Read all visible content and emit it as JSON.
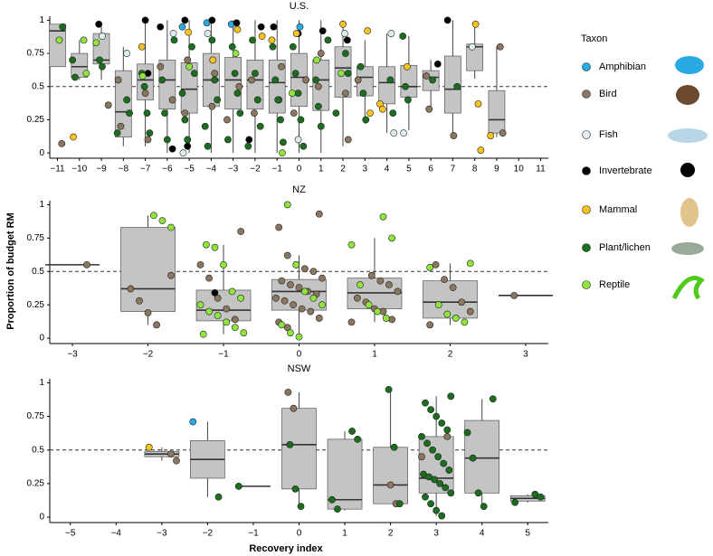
{
  "chart_data": [
    {
      "type": "box",
      "title": "U.S.",
      "legend_title": "Taxon",
      "xlim": [
        -11.35,
        11.35
      ],
      "ylim": [
        -0.04,
        1.03
      ],
      "yticks": [
        0,
        0.25,
        0.5,
        0.75,
        1
      ],
      "hline": 0.5,
      "xticks": [
        {
          "value": -11,
          "label": "−11"
        },
        {
          "value": -10,
          "label": "−10"
        },
        {
          "value": -9,
          "label": "−9"
        },
        {
          "value": -8,
          "label": "−8"
        },
        {
          "value": -7,
          "label": "−7"
        },
        {
          "value": -6,
          "label": "−6"
        },
        {
          "value": -5,
          "label": "−5"
        },
        {
          "value": -4,
          "label": "−4"
        },
        {
          "value": -3,
          "label": "−3"
        },
        {
          "value": -2,
          "label": "−2"
        },
        {
          "value": -1,
          "label": "−1"
        },
        0,
        1,
        2,
        3,
        4,
        5,
        6,
        7,
        8,
        9,
        10,
        11
      ],
      "boxes": {
        "x": [
          -11,
          -10,
          -9,
          -8,
          -7,
          -6,
          -5,
          -4,
          -3,
          -2,
          -1,
          0,
          1,
          2,
          3,
          4,
          5,
          6,
          7,
          8,
          9
        ],
        "whislo": [
          0.65,
          0.55,
          0.55,
          0.05,
          0.05,
          0,
          0,
          0,
          0,
          0,
          0,
          0,
          0,
          0.05,
          0.22,
          0.15,
          0.17,
          0.35,
          0.13,
          0.56,
          0.12
        ],
        "q1": [
          0.65,
          0.57,
          0.67,
          0.12,
          0.4,
          0.33,
          0.3,
          0.35,
          0.33,
          0.33,
          0.3,
          0.35,
          0.32,
          0.42,
          0.43,
          0.37,
          0.42,
          0.47,
          0.3,
          0.62,
          0.15
        ],
        "med": [
          0.92,
          0.65,
          0.7,
          0.31,
          0.55,
          0.55,
          0.48,
          0.55,
          0.55,
          0.55,
          0.53,
          0.57,
          0.55,
          0.64,
          0.57,
          0.53,
          0.5,
          0.57,
          0.48,
          0.8,
          0.25
        ],
        "q3": [
          0.97,
          0.75,
          0.9,
          0.62,
          0.67,
          0.7,
          0.68,
          0.75,
          0.72,
          0.7,
          0.7,
          0.75,
          0.7,
          0.8,
          0.65,
          0.65,
          0.66,
          0.62,
          0.73,
          0.82,
          0.47
        ],
        "whishi": [
          0.97,
          0.85,
          0.97,
          0.8,
          1,
          1,
          1,
          1,
          1,
          1,
          1,
          1,
          1,
          1,
          0.85,
          0.9,
          0.88,
          0.7,
          1,
          0.96,
          0.8
        ]
      },
      "series": [
        {
          "name": "Amphibian",
          "color": "#29abe2",
          "x": [
            -5,
            -4,
            -3,
            0
          ],
          "values": [
            0.95,
            0.98,
            0.97,
            0.95
          ]
        },
        {
          "name": "Bird",
          "color": "#8b7660",
          "x": [
            -11,
            -9,
            -8,
            -8,
            -7,
            -7,
            -6,
            -6,
            -5,
            -5,
            -4,
            -4,
            -3,
            -3,
            -2,
            -2,
            -1,
            -1,
            0,
            0,
            1,
            1,
            2,
            2,
            3,
            6,
            6,
            7,
            9,
            9
          ],
          "values": [
            0.07,
            0.36,
            0.55,
            0.2,
            0.45,
            0.1,
            0.4,
            0.65,
            0.3,
            0.7,
            0.35,
            0.6,
            0.5,
            0.25,
            0.55,
            0.3,
            0.4,
            0.65,
            0.55,
            0.3,
            0.5,
            0.75,
            0.45,
            0.1,
            0.55,
            0.58,
            0.33,
            0.13,
            0.8,
            0.15
          ]
        },
        {
          "name": "Fish",
          "color": "#ddeef0",
          "x": [
            -9,
            -8,
            -6,
            -5,
            -4,
            0,
            2,
            4,
            4,
            5,
            8
          ],
          "values": [
            0.88,
            0.75,
            0.9,
            0,
            0.9,
            0.1,
            0.9,
            0.9,
            0.15,
            0.15,
            0.8
          ]
        },
        {
          "name": "Invertebrate",
          "color": "#000000",
          "x": [
            -9,
            -7,
            -7,
            -6,
            -6,
            -5,
            -5,
            -4,
            -3,
            -2,
            -2,
            -1,
            0,
            1,
            2,
            6,
            7
          ],
          "values": [
            0.97,
            1,
            0.6,
            0.03,
            0.95,
            1,
            0.05,
            1,
            0.98,
            0.95,
            0.1,
            0.95,
            0.9,
            0.92,
            0.85,
            0.67,
            1
          ]
        },
        {
          "name": "Mammal",
          "color": "#f7c31c",
          "x": [
            -10,
            -7,
            -5,
            -4,
            -3,
            -2,
            -1,
            0,
            2,
            3,
            3,
            4,
            4,
            5,
            8,
            8,
            8,
            9
          ],
          "values": [
            0.12,
            0.8,
            0.91,
            0.7,
            0.93,
            0.88,
            0.85,
            0.9,
            0.97,
            0.92,
            0.3,
            0.37,
            0.33,
            0.65,
            0.97,
            0.37,
            0.02,
            0.13
          ]
        },
        {
          "name": "Plant/lichen",
          "color": "#1b6e1e",
          "x": [
            -11,
            -10,
            -10,
            -9,
            -9,
            -8,
            -8,
            -8,
            -7,
            -7,
            -7,
            -7,
            -6,
            -6,
            -6,
            -6,
            -5,
            -5,
            -5,
            -5,
            -5,
            -4,
            -4,
            -4,
            -4,
            -4,
            -3,
            -3,
            -3,
            -3,
            -3,
            -2,
            -2,
            -2,
            -2,
            -2,
            -1,
            -1,
            -1,
            -1,
            -1,
            0,
            0,
            0,
            0,
            0,
            1,
            1,
            1,
            1,
            2,
            2,
            2,
            3,
            3,
            3,
            4,
            4,
            5,
            5,
            5,
            6,
            7
          ],
          "values": [
            0.95,
            0.7,
            0.57,
            0.7,
            0.65,
            0.4,
            0.3,
            0.15,
            0.6,
            0.5,
            0.3,
            0.15,
            0.85,
            0.55,
            0.3,
            0.1,
            0.8,
            0.6,
            0.45,
            0.25,
            0.1,
            0.85,
            0.55,
            0.4,
            0.2,
            0.05,
            0.8,
            0.6,
            0.45,
            0.3,
            0.1,
            0.85,
            0.6,
            0.4,
            0.2,
            0.05,
            0.8,
            0.55,
            0.4,
            0.25,
            0.08,
            0.8,
            0.6,
            0.45,
            0.25,
            0.05,
            0.85,
            0.55,
            0.35,
            0.2,
            0.75,
            0.6,
            0.3,
            0.65,
            0.45,
            0.25,
            0.55,
            0.3,
            0.88,
            0.5,
            0.4,
            0.55,
            0.5
          ]
        },
        {
          "name": "Reptile",
          "color": "#8fe53c",
          "x": [
            -11,
            -10,
            -10,
            -9,
            -7,
            -5,
            -3,
            -1,
            0,
            1,
            2
          ],
          "values": [
            0.85,
            0.85,
            0.6,
            0.83,
            0.58,
            0.65,
            0.75,
            0,
            0.45,
            0.7,
            0.6
          ]
        }
      ]
    },
    {
      "type": "box",
      "title": "NZ",
      "ylabel": "Proportion of budget RM",
      "xlim": [
        -3.3,
        3.3
      ],
      "ylim": [
        -0.04,
        1.03
      ],
      "yticks": [
        0,
        0.25,
        0.5,
        0.75,
        1
      ],
      "hline": 0.5,
      "xticks": [
        {
          "value": -3,
          "label": "−3"
        },
        {
          "value": -2,
          "label": "−2"
        },
        {
          "value": -1,
          "label": "−1"
        },
        0,
        1,
        2,
        3
      ],
      "boxes": {
        "x": [
          -3,
          -2,
          -1,
          0,
          1,
          2,
          3
        ],
        "whislo": [
          0.55,
          0.1,
          0.03,
          0.01,
          0.12,
          0.1,
          0.32
        ],
        "q1": [
          0.55,
          0.2,
          0.13,
          0.21,
          0.22,
          0.15,
          0.32
        ],
        "med": [
          0.55,
          0.37,
          0.21,
          0.35,
          0.34,
          0.27,
          0.32
        ],
        "q3": [
          0.55,
          0.83,
          0.36,
          0.44,
          0.45,
          0.43,
          0.32
        ],
        "whishi": [
          0.55,
          0.92,
          0.7,
          0.62,
          0.75,
          0.56,
          0.32
        ]
      },
      "series": [
        {
          "name": "Amphibian",
          "color": "#29abe2",
          "x": [],
          "values": []
        },
        {
          "name": "Bird",
          "color": "#8b7660",
          "x": [
            -3,
            -2,
            -2,
            -2,
            -2,
            -2,
            -1,
            -1,
            -1,
            -1,
            -1,
            -1,
            0,
            0,
            0,
            0,
            0,
            0,
            0,
            0,
            0,
            0,
            0,
            0,
            0,
            0,
            0,
            0,
            0,
            0,
            0,
            0,
            1,
            1,
            1,
            1,
            1,
            1,
            1,
            1,
            1,
            1,
            2,
            2,
            2,
            2,
            2,
            2,
            3
          ],
          "values": [
            0.55,
            0.47,
            0.37,
            0.28,
            0.19,
            0.1,
            0.8,
            0.55,
            0.45,
            0.3,
            0.22,
            0.14,
            0.93,
            0.83,
            0.62,
            0.55,
            0.52,
            0.5,
            0.45,
            0.43,
            0.4,
            0.38,
            0.35,
            0.33,
            0.3,
            0.28,
            0.25,
            0.22,
            0.2,
            0.15,
            0.12,
            0.08,
            0.47,
            0.43,
            0.4,
            0.35,
            0.3,
            0.27,
            0.22,
            0.2,
            0.14,
            0.12,
            0.55,
            0.44,
            0.38,
            0.27,
            0.2,
            0.1,
            0.32
          ]
        },
        {
          "name": "Fish",
          "color": "#ddeef0",
          "x": [],
          "values": []
        },
        {
          "name": "Invertebrate",
          "color": "#000000",
          "x": [
            -1
          ],
          "values": [
            0.34
          ]
        },
        {
          "name": "Mammal",
          "color": "#f7c31c",
          "x": [],
          "values": []
        },
        {
          "name": "Plant/lichen",
          "color": "#1b6e1e",
          "x": [],
          "values": []
        },
        {
          "name": "Reptile",
          "color": "#8fe53c",
          "x": [
            -2,
            -2,
            -2,
            -1,
            -1,
            -1,
            -1,
            -1,
            -1,
            -1,
            -1,
            -1,
            -1,
            -1,
            -1,
            0,
            0,
            0,
            0,
            0,
            0,
            0,
            0,
            1,
            1,
            1,
            1,
            1,
            1,
            1,
            2,
            2,
            2,
            2,
            2,
            2
          ],
          "values": [
            0.92,
            0.88,
            0.83,
            0.7,
            0.68,
            0.55,
            0.35,
            0.3,
            0.25,
            0.2,
            0.17,
            0.12,
            0.08,
            0.04,
            0.03,
            1,
            0.55,
            0.35,
            0.3,
            0.25,
            0.1,
            0.04,
            0.01,
            0.91,
            0.75,
            0.7,
            0.4,
            0.25,
            0.2,
            0.15,
            0.56,
            0.53,
            0.25,
            0.18,
            0.15,
            0.12
          ]
        }
      ]
    },
    {
      "type": "box",
      "title": "NSW",
      "xlabel": "Recovery index",
      "xlim": [
        -5.45,
        5.45
      ],
      "ylim": [
        -0.04,
        1.03
      ],
      "yticks": [
        0,
        0.25,
        0.5,
        0.75,
        1
      ],
      "hline": 0.5,
      "xticks": [
        {
          "value": -5,
          "label": "−5"
        },
        {
          "value": -4,
          "label": "−4"
        },
        {
          "value": -3,
          "label": "−3"
        },
        {
          "value": -2,
          "label": "−2"
        },
        {
          "value": -1,
          "label": "−1"
        },
        0,
        1,
        2,
        3,
        4,
        5
      ],
      "boxes": {
        "x": [
          -3,
          -2,
          -1,
          0,
          1,
          2,
          3,
          4,
          5
        ],
        "whislo": [
          0.42,
          0.15,
          0.23,
          0.08,
          0.05,
          0.1,
          0.01,
          0.08,
          0.11
        ],
        "q1": [
          0.45,
          0.29,
          0.23,
          0.21,
          0.06,
          0.1,
          0.18,
          0.18,
          0.12
        ],
        "med": [
          0.47,
          0.43,
          0.23,
          0.54,
          0.13,
          0.24,
          0.29,
          0.44,
          0.14
        ],
        "q3": [
          0.49,
          0.57,
          0.23,
          0.81,
          0.58,
          0.52,
          0.6,
          0.72,
          0.16
        ],
        "whishi": [
          0.52,
          0.71,
          0.23,
          0.93,
          0.64,
          0.95,
          0.9,
          0.88,
          0.17
        ]
      },
      "series": [
        {
          "name": "Amphibian",
          "color": "#29abe2",
          "x": [
            -2
          ],
          "values": [
            0.71
          ]
        },
        {
          "name": "Bird",
          "color": "#8b7660",
          "x": [
            -3,
            -3,
            0,
            0,
            2,
            2,
            3,
            3
          ],
          "values": [
            0.47,
            0.42,
            0.93,
            0.81,
            0.24,
            0.1,
            0.6,
            0.45
          ]
        },
        {
          "name": "Fish",
          "color": "#ddeef0",
          "x": [],
          "values": []
        },
        {
          "name": "Invertebrate",
          "color": "#000000",
          "x": [],
          "values": []
        },
        {
          "name": "Mammal",
          "color": "#f7c31c",
          "x": [
            -3
          ],
          "values": [
            0.52
          ]
        },
        {
          "name": "Plant/lichen",
          "color": "#1b6e1e",
          "x": [
            -2,
            -1,
            0,
            0,
            0,
            1,
            1,
            1,
            1,
            2,
            2,
            2,
            3,
            3,
            3,
            3,
            3,
            3,
            3,
            3,
            3,
            3,
            3,
            3,
            3,
            3,
            3,
            3,
            3,
            3,
            3,
            3,
            3,
            3,
            4,
            4,
            4,
            4,
            4,
            5,
            5,
            5
          ],
          "values": [
            0.15,
            0.23,
            0.54,
            0.21,
            0.08,
            0.64,
            0.58,
            0.13,
            0.06,
            0.95,
            0.52,
            0.1,
            0.9,
            0.85,
            0.8,
            0.75,
            0.7,
            0.65,
            0.6,
            0.55,
            0.5,
            0.45,
            0.4,
            0.35,
            0.32,
            0.3,
            0.28,
            0.25,
            0.22,
            0.18,
            0.15,
            0.1,
            0.05,
            0.01,
            0.88,
            0.63,
            0.44,
            0.18,
            0.08,
            0.17,
            0.15,
            0.11
          ]
        },
        {
          "name": "Reptile",
          "color": "#8fe53c",
          "x": [],
          "values": []
        }
      ]
    }
  ]
}
